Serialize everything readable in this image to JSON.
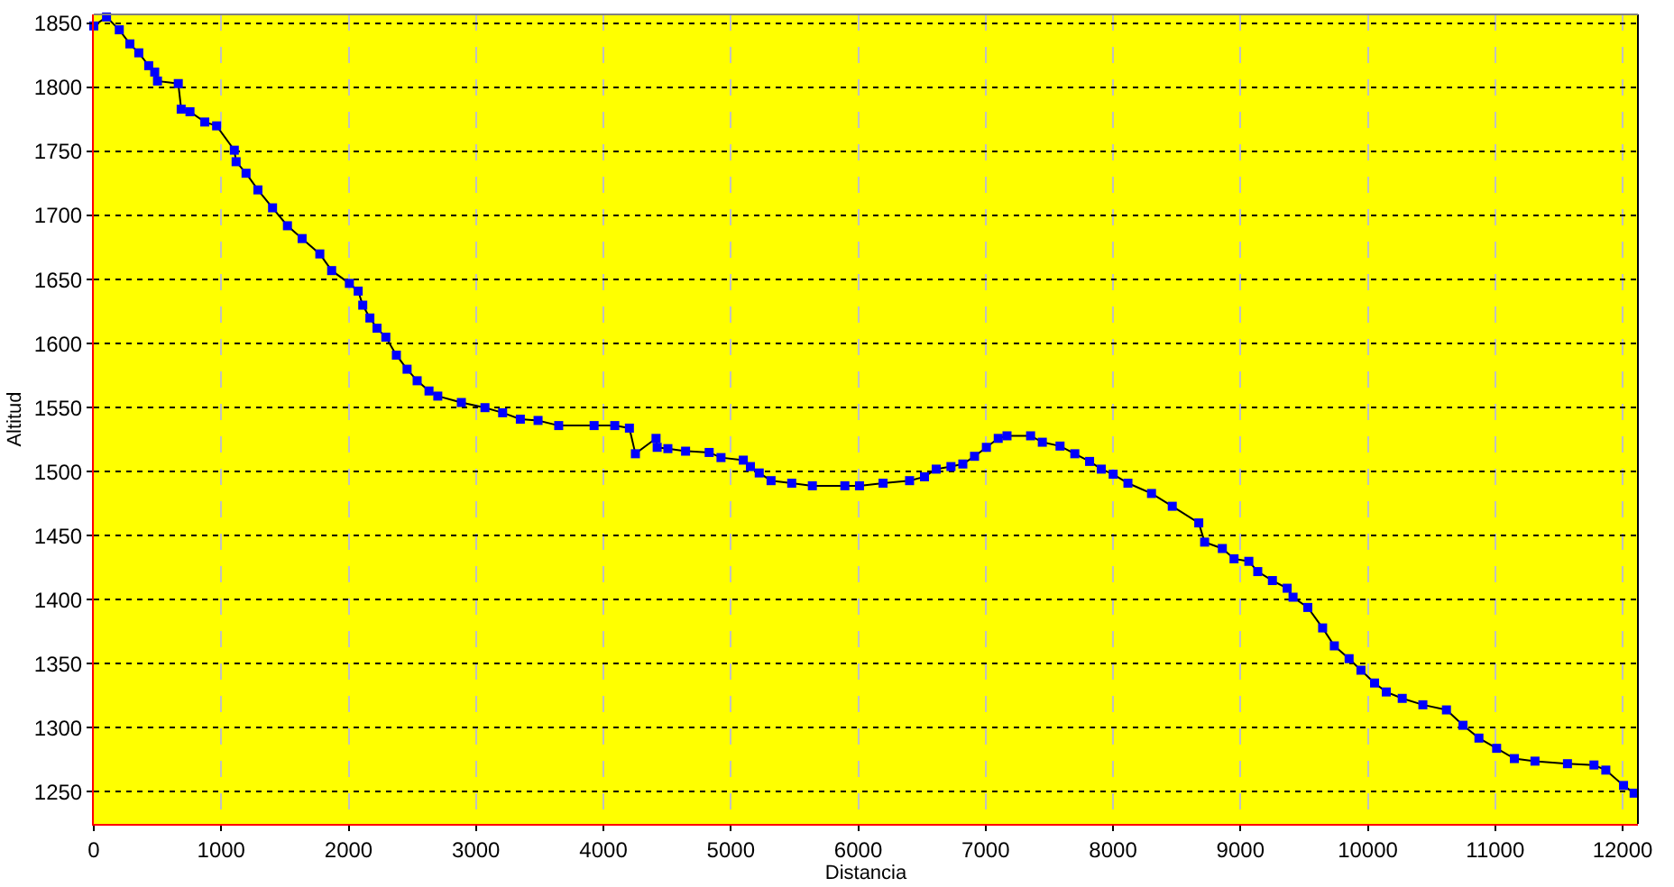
{
  "chart_data": {
    "type": "line",
    "xlabel": "Distancia",
    "ylabel": "Altitud",
    "marker": "square",
    "line_style": "solid",
    "grid": true,
    "xlim": [
      0,
      12120
    ],
    "ylim": [
      1225,
      1857
    ],
    "xticks": [
      0,
      1000,
      2000,
      3000,
      4000,
      5000,
      6000,
      7000,
      8000,
      9000,
      10000,
      11000,
      12000
    ],
    "yticks": [
      1250,
      1300,
      1350,
      1400,
      1450,
      1500,
      1550,
      1600,
      1650,
      1700,
      1750,
      1800,
      1850
    ],
    "series": [
      {
        "color": "#0000ff",
        "x": [
          0,
          100,
          200,
          283,
          353,
          431,
          478,
          500,
          663,
          686,
          755,
          871,
          964,
          1103,
          1117,
          1195,
          1288,
          1403,
          1520,
          1635,
          1774,
          1867,
          2006,
          2075,
          2111,
          2167,
          2223,
          2292,
          2375,
          2459,
          2538,
          2631,
          2700,
          2885,
          3070,
          3209,
          3348,
          3487,
          3649,
          3927,
          4089,
          4204,
          4251,
          4413,
          4422,
          4506,
          4645,
          4830,
          4923,
          5098,
          5154,
          5223,
          5316,
          5478,
          5640,
          5895,
          6010,
          6195,
          6403,
          6520,
          6612,
          6728,
          6821,
          6913,
          7006,
          7099,
          7168,
          7353,
          7445,
          7584,
          7700,
          7816,
          7908,
          8001,
          8117,
          8302,
          8465,
          8673,
          8719,
          8858,
          8950,
          9066,
          9136,
          9251,
          9367,
          9413,
          9529,
          9645,
          9737,
          9853,
          9946,
          10053,
          10145,
          10270,
          10432,
          10617,
          10747,
          10872,
          11011,
          11150,
          11312,
          11567,
          11775,
          11868,
          12007,
          12090
        ],
        "values": [
          1848,
          1855,
          1845,
          1834,
          1827,
          1817,
          1812,
          1805,
          1803,
          1783,
          1781,
          1773,
          1770,
          1751,
          1742,
          1733,
          1720,
          1706,
          1692,
          1682,
          1670,
          1657,
          1647,
          1641,
          1630,
          1620,
          1612,
          1605,
          1591,
          1580,
          1571,
          1563,
          1559,
          1554,
          1550,
          1546,
          1541,
          1540,
          1536,
          1536,
          1536,
          1534,
          1514,
          1526,
          1519,
          1518,
          1516,
          1515,
          1511,
          1509,
          1504,
          1499,
          1493,
          1491,
          1489,
          1489,
          1489,
          1491,
          1493,
          1496,
          1502,
          1504,
          1506,
          1512,
          1519,
          1526,
          1528,
          1528,
          1523,
          1520,
          1514,
          1508,
          1502,
          1498,
          1491,
          1483,
          1473,
          1460,
          1445,
          1440,
          1432,
          1430,
          1422,
          1415,
          1409,
          1402,
          1394,
          1378,
          1364,
          1354,
          1345,
          1335,
          1328,
          1323,
          1318,
          1314,
          1302,
          1292,
          1284,
          1276,
          1274,
          1272,
          1271,
          1267,
          1255,
          1249
        ]
      }
    ]
  }
}
